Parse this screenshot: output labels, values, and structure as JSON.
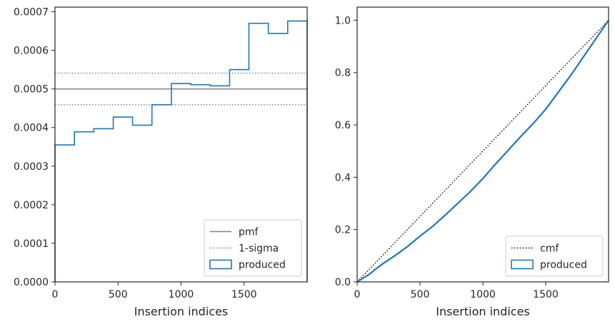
{
  "chart_data": [
    {
      "type": "step",
      "xlabel": "Insertion indices",
      "ylabel": "",
      "xlim": [
        0,
        2000
      ],
      "ylim": [
        0,
        0.000712
      ],
      "xticks": [
        0,
        500,
        1000,
        1500
      ],
      "xtick_labels": [
        "0",
        "500",
        "1000",
        "1500"
      ],
      "yticks": [
        0,
        0.0001,
        0.0002,
        0.0003,
        0.0004,
        0.0005,
        0.0006,
        0.0007
      ],
      "ytick_labels": [
        "0.0000",
        "0.0001",
        "0.0002",
        "0.0003",
        "0.0004",
        "0.0005",
        "0.0006",
        "0.0007"
      ],
      "reference_lines": [
        {
          "name": "pmf",
          "y": 0.0005,
          "style": "solid",
          "color": "#808080"
        },
        {
          "name": "1-sigma",
          "y": 0.000541,
          "style": "dotted",
          "color": "#808080"
        },
        {
          "name": "1-sigma",
          "y": 0.000459,
          "style": "dotted",
          "color": "#808080",
          "legend": false
        }
      ],
      "histogram": {
        "name": "produced",
        "color": "#1f77b4",
        "bin_edges": [
          0,
          154,
          308,
          462,
          615,
          769,
          923,
          1077,
          1231,
          1385,
          1538,
          1692,
          1846,
          2000
        ],
        "values": [
          0.000355,
          0.000389,
          0.000397,
          0.000427,
          0.000406,
          0.000459,
          0.000514,
          0.000511,
          0.000508,
          0.00055,
          0.00067,
          0.000644,
          0.000676
        ]
      },
      "legend": {
        "placement": "bottom-right",
        "entries": [
          {
            "label": "pmf",
            "kind": "line-solid",
            "color": "#808080"
          },
          {
            "label": "1-sigma",
            "kind": "line-dotted",
            "color": "#808080"
          },
          {
            "label": "produced",
            "kind": "patch",
            "color": "#1f77b4"
          }
        ]
      }
    },
    {
      "type": "line",
      "xlabel": "Insertion indices",
      "ylabel": "",
      "xlim": [
        0,
        2000
      ],
      "ylim": [
        0,
        1.05
      ],
      "xticks": [
        0,
        500,
        1000,
        1500
      ],
      "xtick_labels": [
        "0",
        "500",
        "1000",
        "1500"
      ],
      "yticks": [
        0,
        0.2,
        0.4,
        0.6,
        0.8,
        1.0
      ],
      "ytick_labels": [
        "0.0",
        "0.2",
        "0.4",
        "0.6",
        "0.8",
        "1.0"
      ],
      "series": [
        {
          "name": "cmf",
          "style": "dotted",
          "color": "#000000",
          "x": [
            0,
            2000
          ],
          "y": [
            0,
            1.0
          ]
        },
        {
          "name": "produced",
          "style": "solid",
          "color": "#1f77b4",
          "x": [
            0,
            50,
            100,
            150,
            200,
            300,
            400,
            500,
            600,
            700,
            800,
            900,
            1000,
            1100,
            1200,
            1300,
            1400,
            1500,
            1600,
            1700,
            1800,
            1900,
            2000
          ],
          "y": [
            0,
            0.015,
            0.03,
            0.05,
            0.068,
            0.1,
            0.135,
            0.175,
            0.212,
            0.255,
            0.3,
            0.345,
            0.395,
            0.45,
            0.502,
            0.555,
            0.605,
            0.66,
            0.725,
            0.79,
            0.86,
            0.93,
            1.0
          ]
        }
      ],
      "legend": {
        "placement": "bottom-right",
        "entries": [
          {
            "label": "cmf",
            "kind": "line-dotted",
            "color": "#000000"
          },
          {
            "label": "produced",
            "kind": "patch",
            "color": "#1f77b4"
          }
        ]
      }
    }
  ]
}
